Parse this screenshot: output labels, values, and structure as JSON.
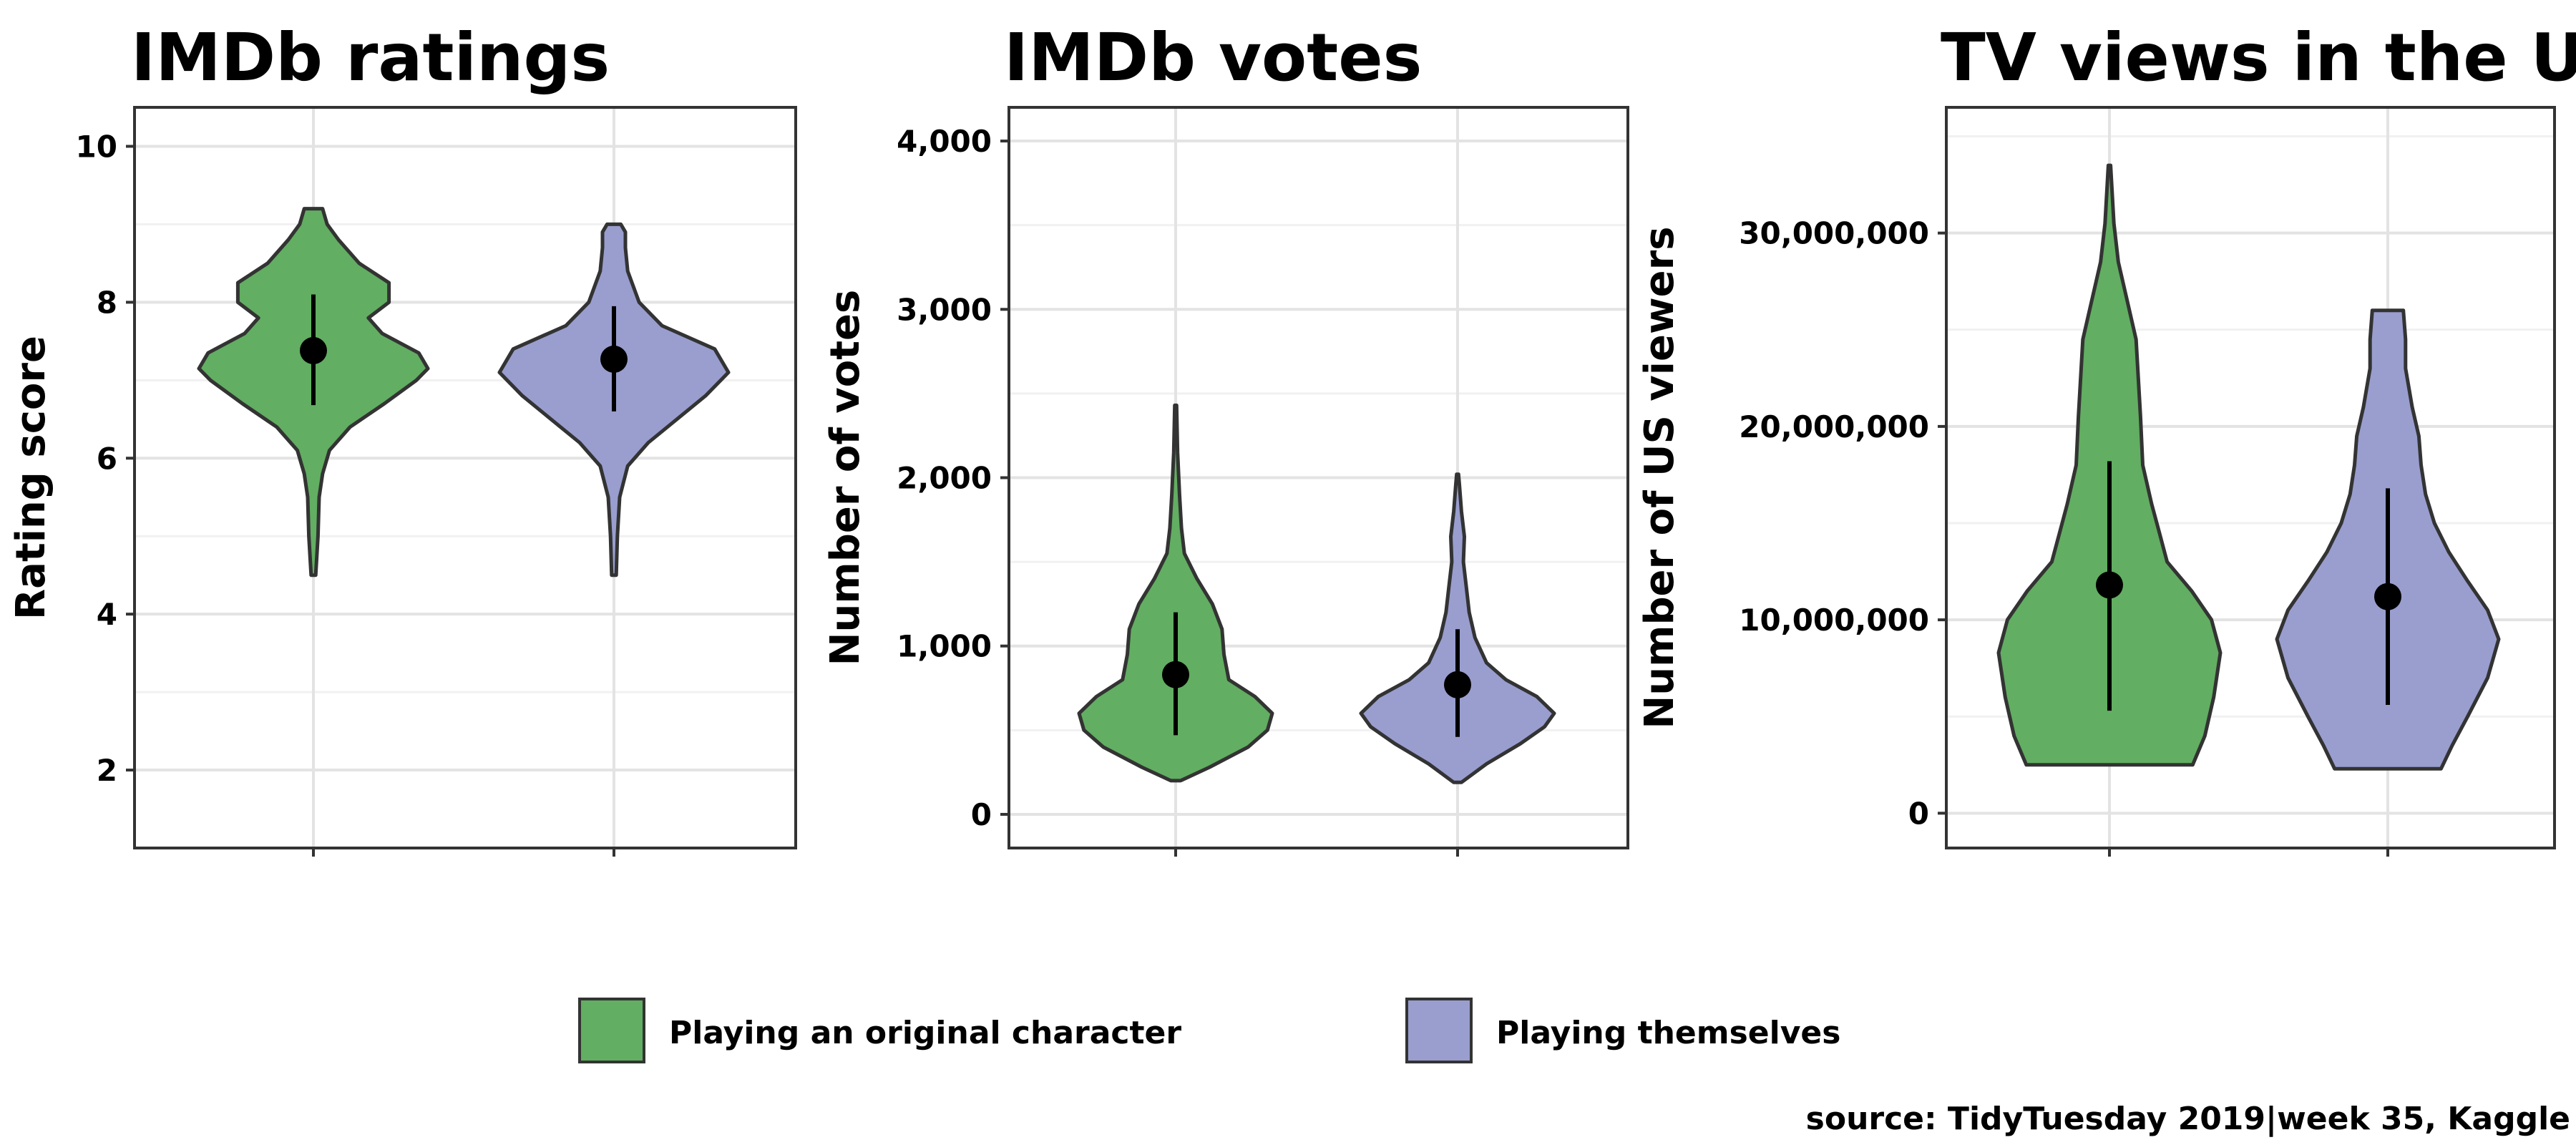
{
  "chart_data": [
    {
      "type": "violin",
      "title": "IMDb ratings",
      "ylabel": "Rating score",
      "ylim": [
        1,
        10.5
      ],
      "yticks": [
        2,
        4,
        6,
        8,
        10
      ],
      "tick_labels": [
        "2",
        "4",
        "6",
        "8",
        "10"
      ],
      "series": [
        {
          "name": "Playing an original character",
          "range": [
            4.5,
            9.2
          ],
          "mean": 7.38,
          "interval": [
            6.68,
            8.1
          ],
          "shape": [
            [
              4.5,
              0.02
            ],
            [
              5.0,
              0.04
            ],
            [
              5.5,
              0.05
            ],
            [
              5.8,
              0.08
            ],
            [
              6.1,
              0.14
            ],
            [
              6.4,
              0.32
            ],
            [
              6.7,
              0.62
            ],
            [
              7.0,
              0.9
            ],
            [
              7.15,
              1.0
            ],
            [
              7.35,
              0.92
            ],
            [
              7.6,
              0.6
            ],
            [
              7.8,
              0.48
            ],
            [
              8.0,
              0.66
            ],
            [
              8.25,
              0.66
            ],
            [
              8.5,
              0.4
            ],
            [
              8.8,
              0.22
            ],
            [
              9.0,
              0.12
            ],
            [
              9.2,
              0.08
            ]
          ]
        },
        {
          "name": "Playing themselves",
          "range": [
            4.5,
            9.0
          ],
          "mean": 7.27,
          "interval": [
            6.6,
            7.95
          ],
          "shape": [
            [
              4.5,
              0.02
            ],
            [
              5.0,
              0.03
            ],
            [
              5.5,
              0.05
            ],
            [
              5.9,
              0.12
            ],
            [
              6.2,
              0.3
            ],
            [
              6.5,
              0.55
            ],
            [
              6.8,
              0.8
            ],
            [
              7.1,
              1.0
            ],
            [
              7.4,
              0.88
            ],
            [
              7.7,
              0.42
            ],
            [
              8.0,
              0.22
            ],
            [
              8.4,
              0.12
            ],
            [
              8.7,
              0.1
            ],
            [
              8.9,
              0.1
            ],
            [
              9.0,
              0.06
            ]
          ]
        }
      ]
    },
    {
      "type": "violin",
      "title": "IMDb votes",
      "ylabel": "Number of votes",
      "ylim": [
        -200,
        4200
      ],
      "yticks": [
        0,
        1000,
        2000,
        3000,
        4000
      ],
      "tick_labels": [
        "0",
        "1,000",
        "2,000",
        "3,000",
        "4,000"
      ],
      "series": [
        {
          "name": "Playing an original character",
          "range": [
            200,
            2430
          ],
          "mean": 830,
          "interval": [
            470,
            1200
          ],
          "shape": [
            [
              200,
              0.05
            ],
            [
              280,
              0.35
            ],
            [
              400,
              0.75
            ],
            [
              500,
              0.95
            ],
            [
              600,
              1.0
            ],
            [
              700,
              0.82
            ],
            [
              800,
              0.55
            ],
            [
              950,
              0.5
            ],
            [
              1100,
              0.48
            ],
            [
              1250,
              0.38
            ],
            [
              1400,
              0.22
            ],
            [
              1550,
              0.09
            ],
            [
              1700,
              0.06
            ],
            [
              1900,
              0.04
            ],
            [
              2150,
              0.02
            ],
            [
              2430,
              0.01
            ]
          ]
        },
        {
          "name": "Playing themselves",
          "range": [
            190,
            2020
          ],
          "mean": 770,
          "interval": [
            460,
            1100
          ],
          "shape": [
            [
              190,
              0.04
            ],
            [
              300,
              0.3
            ],
            [
              420,
              0.65
            ],
            [
              520,
              0.9
            ],
            [
              600,
              1.0
            ],
            [
              700,
              0.82
            ],
            [
              800,
              0.5
            ],
            [
              900,
              0.3
            ],
            [
              1050,
              0.18
            ],
            [
              1200,
              0.12
            ],
            [
              1350,
              0.09
            ],
            [
              1500,
              0.06
            ],
            [
              1650,
              0.07
            ],
            [
              1800,
              0.04
            ],
            [
              1950,
              0.02
            ],
            [
              2020,
              0.01
            ]
          ]
        }
      ]
    },
    {
      "type": "violin",
      "title": "TV views in the US",
      "ylabel": "Number of US viewers",
      "ylim": [
        -1800000,
        36500000
      ],
      "yticks": [
        0,
        10000000,
        20000000,
        30000000
      ],
      "tick_labels": [
        "0",
        "10,000,000",
        "20,000,000",
        "30,000,000"
      ],
      "series": [
        {
          "name": "Playing an original character",
          "range": [
            2500000,
            33500000
          ],
          "mean": 11800000,
          "interval": [
            5300000,
            18200000
          ],
          "shape": [
            [
              2500000,
              0.75
            ],
            [
              4000000,
              0.86
            ],
            [
              6000000,
              0.94
            ],
            [
              8300000,
              1.0
            ],
            [
              10000000,
              0.92
            ],
            [
              11500000,
              0.74
            ],
            [
              13000000,
              0.52
            ],
            [
              14500000,
              0.45
            ],
            [
              16000000,
              0.38
            ],
            [
              18000000,
              0.3
            ],
            [
              20500000,
              0.28
            ],
            [
              22500000,
              0.26
            ],
            [
              24500000,
              0.24
            ],
            [
              26500000,
              0.16
            ],
            [
              28500000,
              0.08
            ],
            [
              30500000,
              0.04
            ],
            [
              33500000,
              0.01
            ]
          ]
        },
        {
          "name": "Playing themselves",
          "range": [
            2300000,
            26000000
          ],
          "mean": 11200000,
          "interval": [
            5600000,
            16800000
          ],
          "shape": [
            [
              2300000,
              0.48
            ],
            [
              3500000,
              0.58
            ],
            [
              5000000,
              0.72
            ],
            [
              7000000,
              0.9
            ],
            [
              9000000,
              1.0
            ],
            [
              10500000,
              0.9
            ],
            [
              12000000,
              0.72
            ],
            [
              13500000,
              0.55
            ],
            [
              15000000,
              0.42
            ],
            [
              16500000,
              0.34
            ],
            [
              18000000,
              0.3
            ],
            [
              19500000,
              0.28
            ],
            [
              21000000,
              0.22
            ],
            [
              23000000,
              0.16
            ],
            [
              24500000,
              0.16
            ],
            [
              26000000,
              0.14
            ]
          ]
        }
      ]
    }
  ],
  "legend": {
    "position": "bottom",
    "items": [
      {
        "label": "Playing an original character",
        "color": "#62ae62"
      },
      {
        "label": "Playing themselves",
        "color": "#999ecf"
      }
    ]
  },
  "source": "source: TidyTuesday 2019|week 35, Kaggle"
}
